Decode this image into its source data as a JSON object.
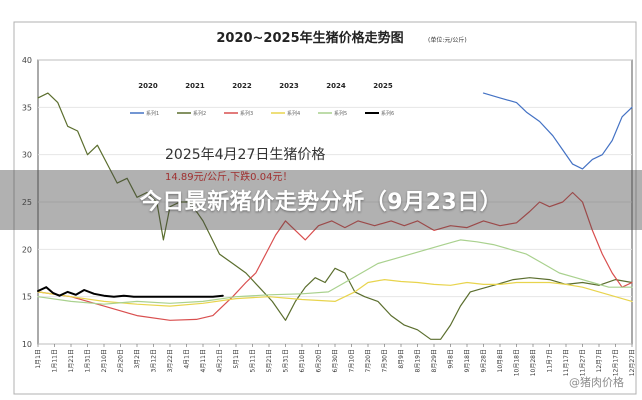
{
  "banner": {
    "text": "今日最新猪价走势分析（9月23日）"
  },
  "watermark": {
    "text": "@猪肉价格"
  },
  "chart_data": {
    "type": "line",
    "title": "2020~2025年生猪价格走势图",
    "title_note": "(单位:元/公斤)",
    "annotation_title": "2025年4月27日生猪价格",
    "annotation_price": "14.89元/公斤,下跌0.04元！",
    "ylim": [
      10,
      40
    ],
    "yticks": [
      10,
      15,
      20,
      25,
      30,
      35,
      40
    ],
    "x": [
      "1月1日",
      "1月11日",
      "1月21日",
      "1月31日",
      "2月10日",
      "2月20日",
      "3月2日",
      "3月12日",
      "3月22日",
      "4月1日",
      "4月11日",
      "4月21日",
      "5月1日",
      "5月11日",
      "5月21日",
      "5月31日",
      "6月10日",
      "6月20日",
      "6月30日",
      "7月10日",
      "7月20日",
      "7月30日",
      "8月9日",
      "8月19日",
      "8月29日",
      "9月8日",
      "9月18日",
      "9月28日",
      "10月8日",
      "10月18日",
      "10月28日",
      "11月7日",
      "11月17日",
      "11月27日",
      "12月7日",
      "12月17日",
      "12月27日"
    ],
    "x_positions": [
      0,
      10,
      20,
      30,
      40,
      50,
      60,
      70,
      80,
      90,
      100,
      110,
      120,
      130,
      140,
      150,
      160,
      170,
      180,
      190,
      200,
      210,
      220,
      230,
      240,
      250,
      260,
      270,
      280,
      290,
      300,
      310,
      320,
      330,
      340,
      350,
      360
    ],
    "legend_years": [
      "2020",
      "2021",
      "2022",
      "2023",
      "2024",
      "2025"
    ],
    "legend_labels": [
      "系列1",
      "系列2",
      "系列3",
      "系列4",
      "系列5",
      "系列6"
    ],
    "series": [
      {
        "name": "系列1",
        "year": "2020",
        "color": "#4472c4",
        "points": [
          [
            270,
            36.5
          ],
          [
            280,
            36
          ],
          [
            290,
            35.5
          ],
          [
            296,
            34.5
          ],
          [
            304,
            33.5
          ],
          [
            312,
            32
          ],
          [
            318,
            30.5
          ],
          [
            324,
            29
          ],
          [
            330,
            28.5
          ],
          [
            336,
            29.5
          ],
          [
            342,
            30
          ],
          [
            348,
            31.5
          ],
          [
            354,
            34
          ],
          [
            360,
            35
          ]
        ]
      },
      {
        "name": "系列2",
        "year": "2021",
        "color": "#5b6e2e",
        "points": [
          [
            0,
            36
          ],
          [
            6,
            36.5
          ],
          [
            12,
            35.5
          ],
          [
            18,
            33
          ],
          [
            24,
            32.5
          ],
          [
            30,
            30
          ],
          [
            36,
            31
          ],
          [
            42,
            29
          ],
          [
            48,
            27
          ],
          [
            54,
            27.5
          ],
          [
            60,
            25.5
          ],
          [
            66,
            26
          ],
          [
            72,
            25
          ],
          [
            76,
            21
          ],
          [
            80,
            24.5
          ],
          [
            86,
            25
          ],
          [
            92,
            25
          ],
          [
            100,
            23
          ],
          [
            110,
            19.5
          ],
          [
            118,
            18.5
          ],
          [
            126,
            17.5
          ],
          [
            134,
            16
          ],
          [
            142,
            14.5
          ],
          [
            150,
            12.5
          ],
          [
            156,
            14.5
          ],
          [
            162,
            16
          ],
          [
            168,
            17
          ],
          [
            174,
            16.5
          ],
          [
            180,
            18
          ],
          [
            186,
            17.5
          ],
          [
            192,
            15.5
          ],
          [
            198,
            15
          ],
          [
            206,
            14.5
          ],
          [
            214,
            13
          ],
          [
            222,
            12
          ],
          [
            230,
            11.5
          ],
          [
            238,
            10.5
          ],
          [
            244,
            10.5
          ],
          [
            250,
            12
          ],
          [
            256,
            14
          ],
          [
            262,
            15.5
          ],
          [
            268,
            15.8
          ],
          [
            278,
            16.3
          ],
          [
            288,
            16.8
          ],
          [
            298,
            17
          ],
          [
            310,
            16.8
          ],
          [
            320,
            16.3
          ],
          [
            330,
            16.5
          ],
          [
            340,
            16.2
          ],
          [
            350,
            16.8
          ],
          [
            360,
            16.5
          ]
        ]
      },
      {
        "name": "系列3",
        "year": "2022",
        "color": "#d94f4f",
        "points": [
          [
            0,
            15.5
          ],
          [
            20,
            15
          ],
          [
            40,
            14
          ],
          [
            60,
            13
          ],
          [
            80,
            12.5
          ],
          [
            96,
            12.6
          ],
          [
            106,
            13
          ],
          [
            112,
            14
          ],
          [
            118,
            15
          ],
          [
            126,
            16.5
          ],
          [
            132,
            17.5
          ],
          [
            138,
            19.5
          ],
          [
            144,
            21.5
          ],
          [
            150,
            23
          ],
          [
            156,
            22
          ],
          [
            162,
            21
          ],
          [
            170,
            22.5
          ],
          [
            178,
            23
          ],
          [
            186,
            22.3
          ],
          [
            194,
            23
          ],
          [
            204,
            22.5
          ],
          [
            214,
            23
          ],
          [
            222,
            22.5
          ],
          [
            230,
            23
          ],
          [
            240,
            22
          ],
          [
            250,
            22.5
          ],
          [
            260,
            22.3
          ],
          [
            270,
            23
          ],
          [
            280,
            22.5
          ],
          [
            290,
            22.8
          ],
          [
            298,
            24
          ],
          [
            304,
            25
          ],
          [
            310,
            24.5
          ],
          [
            318,
            25
          ],
          [
            324,
            26
          ],
          [
            330,
            25
          ],
          [
            336,
            22
          ],
          [
            342,
            19.5
          ],
          [
            348,
            17.5
          ],
          [
            354,
            16
          ],
          [
            360,
            16.5
          ]
        ]
      },
      {
        "name": "系列4",
        "year": "2023",
        "color": "#e8d44d",
        "points": [
          [
            0,
            15.5
          ],
          [
            20,
            15
          ],
          [
            40,
            14.5
          ],
          [
            60,
            14.2
          ],
          [
            80,
            14
          ],
          [
            100,
            14.3
          ],
          [
            120,
            14.8
          ],
          [
            140,
            15
          ],
          [
            160,
            14.7
          ],
          [
            180,
            14.5
          ],
          [
            192,
            15.5
          ],
          [
            200,
            16.5
          ],
          [
            210,
            16.8
          ],
          [
            220,
            16.6
          ],
          [
            230,
            16.5
          ],
          [
            240,
            16.3
          ],
          [
            250,
            16.2
          ],
          [
            260,
            16.5
          ],
          [
            270,
            16.3
          ],
          [
            280,
            16.3
          ],
          [
            290,
            16.5
          ],
          [
            300,
            16.5
          ],
          [
            310,
            16.5
          ],
          [
            320,
            16.3
          ],
          [
            330,
            16
          ],
          [
            340,
            15.5
          ],
          [
            350,
            15
          ],
          [
            360,
            14.5
          ]
        ]
      },
      {
        "name": "系列5",
        "year": "2024",
        "color": "#a9d18e",
        "points": [
          [
            0,
            15
          ],
          [
            20,
            14.5
          ],
          [
            40,
            14.2
          ],
          [
            60,
            14.5
          ],
          [
            80,
            14.3
          ],
          [
            100,
            14.5
          ],
          [
            120,
            15
          ],
          [
            140,
            15.2
          ],
          [
            160,
            15.3
          ],
          [
            176,
            15.5
          ],
          [
            186,
            16.5
          ],
          [
            196,
            17.5
          ],
          [
            206,
            18.5
          ],
          [
            216,
            19
          ],
          [
            226,
            19.5
          ],
          [
            236,
            20
          ],
          [
            246,
            20.5
          ],
          [
            256,
            21
          ],
          [
            266,
            20.8
          ],
          [
            276,
            20.5
          ],
          [
            286,
            20
          ],
          [
            296,
            19.5
          ],
          [
            306,
            18.5
          ],
          [
            316,
            17.5
          ],
          [
            326,
            17
          ],
          [
            336,
            16.5
          ],
          [
            346,
            16
          ],
          [
            360,
            16
          ]
        ]
      },
      {
        "name": "系列6",
        "year": "2025",
        "color": "#000000",
        "points": [
          [
            0,
            15.6
          ],
          [
            5,
            16
          ],
          [
            9,
            15.4
          ],
          [
            13,
            15.1
          ],
          [
            18,
            15.5
          ],
          [
            23,
            15.2
          ],
          [
            28,
            15.7
          ],
          [
            34,
            15.3
          ],
          [
            40,
            15.1
          ],
          [
            46,
            15
          ],
          [
            52,
            15.1
          ],
          [
            58,
            15
          ],
          [
            66,
            15
          ],
          [
            74,
            15
          ],
          [
            82,
            15
          ],
          [
            90,
            15
          ],
          [
            98,
            15
          ],
          [
            106,
            15
          ],
          [
            112,
            15.1
          ]
        ]
      }
    ]
  }
}
